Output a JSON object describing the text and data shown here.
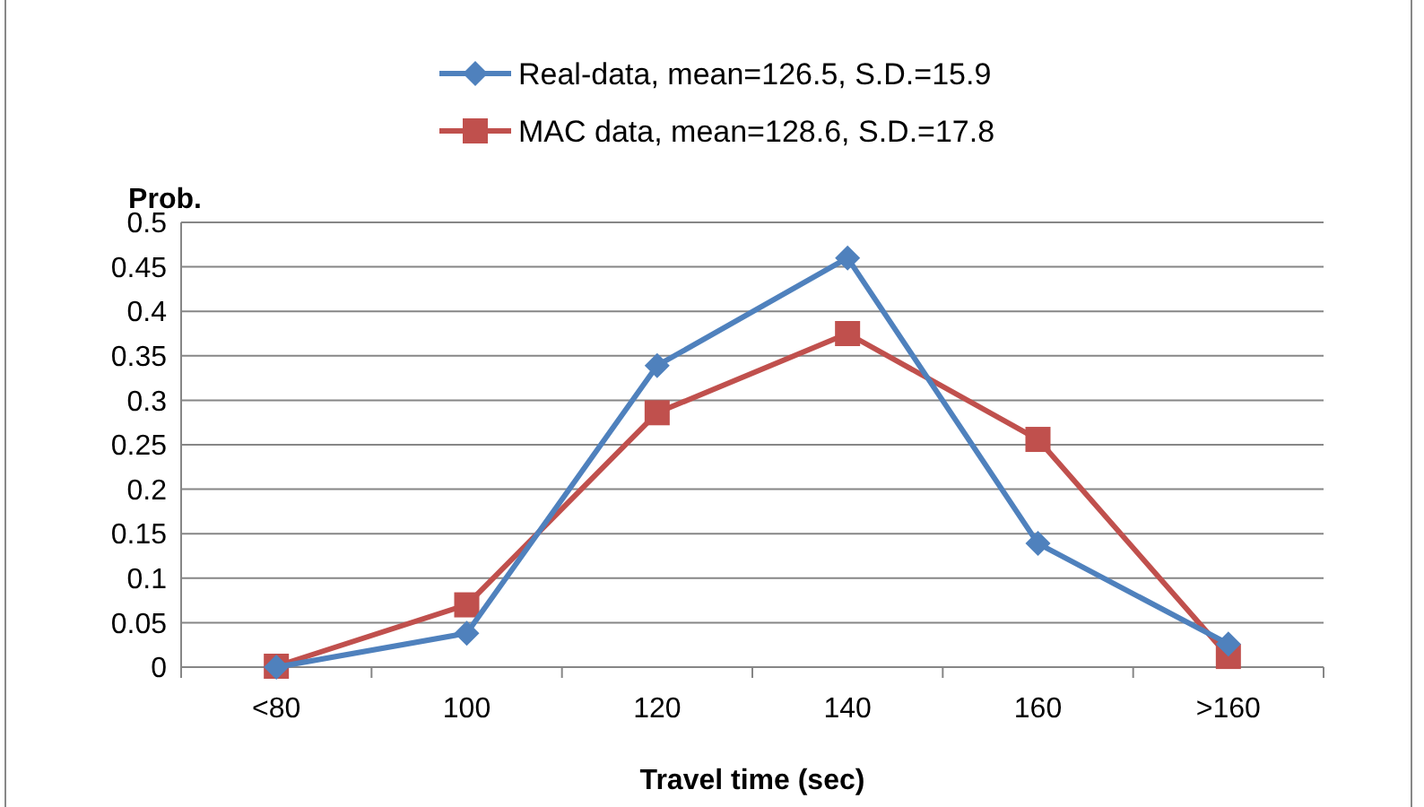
{
  "chart_data": {
    "type": "line",
    "ylabel": "Prob.",
    "xlabel": "Travel time (sec)",
    "categories": [
      "<80",
      "100",
      "120",
      "140",
      "160",
      ">160"
    ],
    "series": [
      {
        "name": "Real-data, mean=126.5, S.D.=15.9",
        "color": "#4f81bd",
        "marker": "diamond",
        "values": [
          0,
          0.038,
          0.339,
          0.46,
          0.139,
          0.026
        ]
      },
      {
        "name": "MAC data, mean=128.6, S.D.=17.8",
        "color": "#c0504d",
        "marker": "square",
        "values": [
          0.001,
          0.07,
          0.286,
          0.375,
          0.256,
          0.012
        ]
      }
    ],
    "ylim": [
      0,
      0.5
    ],
    "yticks": [
      0,
      0.05,
      0.1,
      0.15,
      0.2,
      0.25,
      0.3,
      0.35,
      0.4,
      0.45,
      0.5
    ],
    "grid": "y",
    "legend": "top",
    "line_style": "solid"
  }
}
